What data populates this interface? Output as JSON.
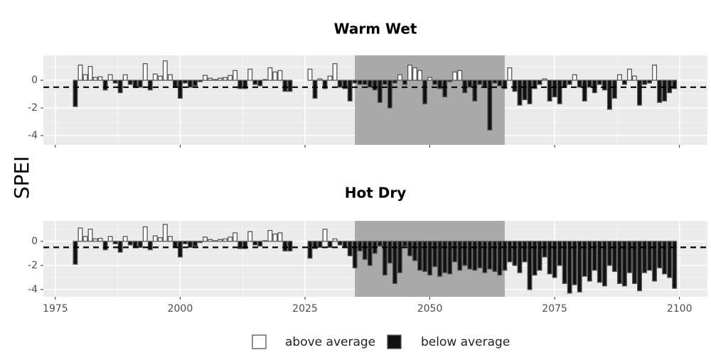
{
  "shared": {
    "ylabel": "SPEI",
    "legend": [
      {
        "name": "above average",
        "color": "#ffffff"
      },
      {
        "name": "below average",
        "color": "#111111"
      }
    ]
  },
  "chart_data": [
    {
      "type": "bar",
      "title": "Warm Wet",
      "x": [
        1979,
        1980,
        1981,
        1982,
        1983,
        1984,
        1985,
        1986,
        1987,
        1988,
        1989,
        1990,
        1991,
        1992,
        1993,
        1994,
        1995,
        1996,
        1997,
        1998,
        1999,
        2000,
        2001,
        2002,
        2003,
        2004,
        2005,
        2006,
        2007,
        2008,
        2009,
        2010,
        2011,
        2012,
        2013,
        2014,
        2015,
        2016,
        2017,
        2018,
        2019,
        2020,
        2021,
        2022,
        2026,
        2027,
        2028,
        2029,
        2030,
        2031,
        2032,
        2033,
        2034,
        2035,
        2036,
        2037,
        2038,
        2039,
        2040,
        2041,
        2042,
        2043,
        2044,
        2045,
        2046,
        2047,
        2048,
        2049,
        2050,
        2051,
        2052,
        2053,
        2054,
        2055,
        2056,
        2057,
        2058,
        2059,
        2060,
        2061,
        2062,
        2063,
        2064,
        2065,
        2066,
        2067,
        2068,
        2069,
        2070,
        2071,
        2072,
        2073,
        2074,
        2075,
        2076,
        2077,
        2078,
        2079,
        2080,
        2081,
        2082,
        2083,
        2084,
        2085,
        2086,
        2087,
        2088,
        2089,
        2090,
        2091,
        2092,
        2093,
        2094,
        2095,
        2096,
        2097,
        2098,
        2099
      ],
      "values": [
        -1.9,
        1.1,
        0.4,
        1.0,
        0.2,
        0.25,
        -0.7,
        0.4,
        -0.2,
        -0.9,
        0.4,
        -0.3,
        -0.5,
        -0.5,
        1.2,
        -0.7,
        0.45,
        0.3,
        1.4,
        0.4,
        -0.5,
        -1.3,
        -0.2,
        -0.5,
        -0.4,
        -0.1,
        0.35,
        0.15,
        0.05,
        0.15,
        0.2,
        0.35,
        0.7,
        -0.6,
        -0.6,
        0.8,
        -0.3,
        -0.4,
        0.05,
        0.9,
        0.6,
        0.7,
        -0.8,
        -0.8,
        0.8,
        -1.3,
        0.1,
        -0.6,
        0.3,
        1.2,
        -0.5,
        -0.6,
        -1.5,
        -0.2,
        -0.3,
        -0.3,
        -0.5,
        -0.7,
        -1.6,
        -0.3,
        -2.0,
        -0.2,
        0.4,
        -0.3,
        1.1,
        0.9,
        0.7,
        -1.7,
        0.2,
        -0.3,
        -0.6,
        -1.2,
        -0.1,
        0.6,
        0.7,
        -0.9,
        -0.5,
        -1.5,
        -0.3,
        -0.5,
        -3.6,
        -0.2,
        -0.4,
        -0.6,
        0.9,
        -0.8,
        -1.8,
        -1.4,
        -1.7,
        -0.6,
        -0.3,
        0.1,
        -1.5,
        -1.2,
        -1.7,
        -0.5,
        -0.3,
        0.4,
        -0.5,
        -1.5,
        -0.5,
        -0.9,
        -0.3,
        -0.7,
        -2.1,
        -1.3,
        0.4,
        -0.3,
        0.8,
        0.3,
        -1.8,
        -0.3,
        -0.2,
        1.1,
        -1.6,
        -1.5,
        -0.9,
        -0.6
      ],
      "xlim": [
        1972.6,
        2105.6
      ],
      "ylim": [
        -4.67,
        1.8
      ],
      "xticks": [
        1975,
        2000,
        2025,
        2050,
        2075,
        2100
      ],
      "xtick_labels": false,
      "yticks": [
        -4,
        -2,
        0
      ],
      "shaded_region": [
        2035,
        2065
      ],
      "reference_line": -0.5,
      "grid": true
    },
    {
      "type": "bar",
      "title": "Hot Dry",
      "x": [
        1979,
        1980,
        1981,
        1982,
        1983,
        1984,
        1985,
        1986,
        1987,
        1988,
        1989,
        1990,
        1991,
        1992,
        1993,
        1994,
        1995,
        1996,
        1997,
        1998,
        1999,
        2000,
        2001,
        2002,
        2003,
        2004,
        2005,
        2006,
        2007,
        2008,
        2009,
        2010,
        2011,
        2012,
        2013,
        2014,
        2015,
        2016,
        2017,
        2018,
        2019,
        2020,
        2021,
        2022,
        2026,
        2027,
        2028,
        2029,
        2030,
        2031,
        2032,
        2033,
        2034,
        2035,
        2036,
        2037,
        2038,
        2039,
        2040,
        2041,
        2042,
        2043,
        2044,
        2045,
        2046,
        2047,
        2048,
        2049,
        2050,
        2051,
        2052,
        2053,
        2054,
        2055,
        2056,
        2057,
        2058,
        2059,
        2060,
        2061,
        2062,
        2063,
        2064,
        2065,
        2066,
        2067,
        2068,
        2069,
        2070,
        2071,
        2072,
        2073,
        2074,
        2075,
        2076,
        2077,
        2078,
        2079,
        2080,
        2081,
        2082,
        2083,
        2084,
        2085,
        2086,
        2087,
        2088,
        2089,
        2090,
        2091,
        2092,
        2093,
        2094,
        2095,
        2096,
        2097,
        2098,
        2099
      ],
      "values": [
        -1.9,
        1.1,
        0.4,
        1.0,
        0.2,
        0.25,
        -0.7,
        0.4,
        -0.2,
        -0.9,
        0.4,
        -0.3,
        -0.5,
        -0.5,
        1.2,
        -0.7,
        0.45,
        0.3,
        1.4,
        0.4,
        -0.5,
        -1.3,
        -0.2,
        -0.5,
        -0.4,
        -0.1,
        0.35,
        0.15,
        0.05,
        0.15,
        0.2,
        0.35,
        0.7,
        -0.6,
        -0.6,
        0.8,
        -0.3,
        -0.4,
        0.05,
        0.9,
        0.6,
        0.7,
        -0.8,
        -0.8,
        -1.4,
        -0.6,
        -0.5,
        1.0,
        -0.5,
        0.2,
        -0.3,
        -0.5,
        -1.2,
        -2.2,
        -0.8,
        -1.5,
        -2.0,
        -1.0,
        -0.4,
        -2.8,
        -1.8,
        -3.5,
        -2.6,
        -0.4,
        -1.2,
        -1.6,
        -2.4,
        -2.5,
        -2.8,
        -2.1,
        -2.9,
        -2.6,
        -2.7,
        -1.7,
        -2.4,
        -2.0,
        -2.3,
        -2.4,
        -2.2,
        -2.6,
        -2.3,
        -2.5,
        -2.8,
        -2.4,
        -1.7,
        -2.0,
        -2.6,
        -1.7,
        -4.0,
        -2.8,
        -2.4,
        -1.3,
        -2.7,
        -3.0,
        -2.0,
        -3.5,
        -4.3,
        -3.6,
        -4.2,
        -2.9,
        -3.3,
        -2.4,
        -3.4,
        -3.7,
        -2.0,
        -2.5,
        -3.5,
        -3.7,
        -2.6,
        -3.5,
        -4.1,
        -2.6,
        -2.4,
        -3.3,
        -2.2,
        -2.7,
        -3.0,
        -3.9
      ],
      "xlim": [
        1972.6,
        2105.6
      ],
      "ylim": [
        -4.6,
        1.7
      ],
      "xticks": [
        1975,
        2000,
        2025,
        2050,
        2075,
        2100
      ],
      "xtick_labels": true,
      "yticks": [
        -4,
        -2,
        0
      ],
      "shaded_region": [
        2035,
        2065
      ],
      "reference_line": -0.5,
      "grid": true
    }
  ]
}
